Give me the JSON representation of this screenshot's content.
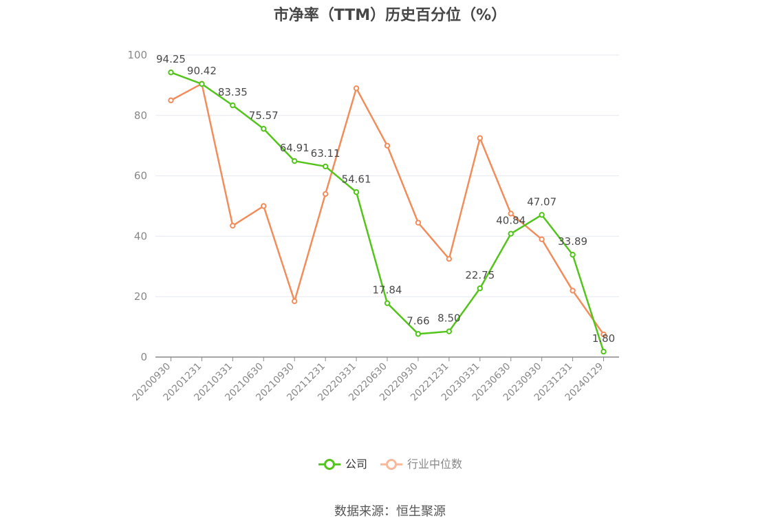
{
  "chart_data": {
    "type": "line",
    "title": "市净率（TTM）历史百分位（%）",
    "categories": [
      "20200930",
      "20201231",
      "20210331",
      "20210630",
      "20210930",
      "20211231",
      "20220331",
      "20220630",
      "20220930",
      "20221231",
      "20230331",
      "20230630",
      "20230930",
      "20231231",
      "20240129"
    ],
    "series": [
      {
        "name": "公司",
        "color": "#52c41a",
        "values": [
          94.25,
          90.42,
          83.35,
          75.57,
          64.91,
          63.11,
          54.61,
          17.84,
          7.66,
          8.5,
          22.75,
          40.84,
          47.07,
          33.89,
          1.8
        ],
        "data_labels": [
          "94.25",
          "90.42",
          "83.35",
          "75.57",
          "64.91",
          "63.11",
          "54.61",
          "17.84",
          "7.66",
          "8.50",
          "22.75",
          "40.84",
          "47.07",
          "33.89",
          "1.80"
        ]
      },
      {
        "name": "行业中位数",
        "color": "#f28c5a",
        "values": [
          85,
          90.5,
          43.5,
          50,
          18.5,
          54,
          89,
          70,
          44.5,
          32.5,
          72.5,
          47.5,
          39,
          22,
          7.5
        ]
      }
    ],
    "ylim": [
      0,
      100
    ],
    "yticks": [
      "0",
      "20",
      "40",
      "60",
      "80",
      "100"
    ],
    "grid": true,
    "legend_position": "bottom"
  },
  "legend": {
    "company_label": "公司",
    "industry_label": "行业中位数"
  },
  "source_note": "数据来源：恒生聚源"
}
